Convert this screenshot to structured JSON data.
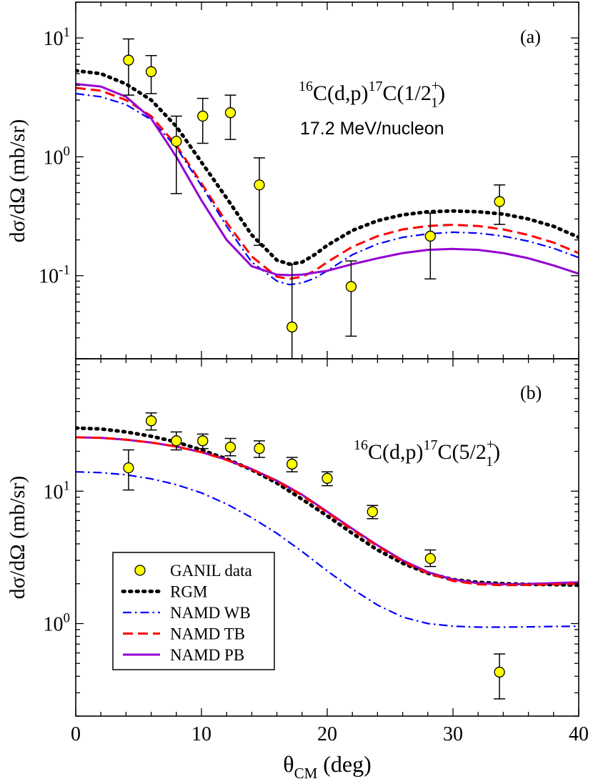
{
  "chart_data": [
    {
      "type": "line",
      "panel_label": "(a)",
      "title_parts": {
        "a1": "16",
        "b1": "C(d,p)",
        "a2": "17",
        "b2": "C(1/2",
        "sup": "+",
        "sub": "1",
        "b3": ")"
      },
      "subtitle": "17.2 MeV/nucleon",
      "ylabel": "dσ/dΩ (mb/sr)",
      "xlim": [
        0,
        40
      ],
      "ylim": [
        0.02,
        20
      ],
      "log_y": true,
      "y_tick_labels": [
        {
          "value": 10,
          "base": "10",
          "exp": "1"
        },
        {
          "value": 1,
          "base": "10",
          "exp": "0"
        },
        {
          "value": 0.1,
          "base": "10",
          "exp": "-1"
        }
      ],
      "data_points": [
        {
          "x": 4.2,
          "y": 6.5,
          "ylo": 3.3,
          "yhi": 9.8
        },
        {
          "x": 6.0,
          "y": 5.2,
          "ylo": 3.4,
          "yhi": 7.1
        },
        {
          "x": 8.0,
          "y": 1.35,
          "ylo": 0.49,
          "yhi": 2.2
        },
        {
          "x": 10.1,
          "y": 2.2,
          "ylo": 1.3,
          "yhi": 3.1
        },
        {
          "x": 12.3,
          "y": 2.35,
          "ylo": 1.4,
          "yhi": 3.3
        },
        {
          "x": 14.6,
          "y": 0.58,
          "ylo": 0.18,
          "yhi": 0.98
        },
        {
          "x": 17.2,
          "y": 0.037,
          "ylo": 0.02,
          "yhi": 0.125
        },
        {
          "x": 21.9,
          "y": 0.081,
          "ylo": 0.031,
          "yhi": 0.133
        },
        {
          "x": 28.2,
          "y": 0.215,
          "ylo": 0.094,
          "yhi": 0.335
        },
        {
          "x": 33.7,
          "y": 0.42,
          "ylo": 0.27,
          "yhi": 0.58
        }
      ],
      "series": [
        {
          "key": "rgm",
          "x": [
            0,
            2,
            4,
            6,
            8,
            10,
            12,
            14,
            16,
            17,
            18,
            19,
            20,
            22,
            24,
            26,
            28,
            30,
            32,
            34,
            36,
            38,
            40
          ],
          "y": [
            5.3,
            5.0,
            4.1,
            3.0,
            1.8,
            0.9,
            0.45,
            0.22,
            0.135,
            0.125,
            0.13,
            0.15,
            0.18,
            0.24,
            0.29,
            0.325,
            0.345,
            0.35,
            0.345,
            0.33,
            0.3,
            0.26,
            0.21
          ]
        },
        {
          "key": "tb",
          "x": [
            0,
            2,
            4,
            6,
            8,
            10,
            12,
            14,
            16,
            17,
            18,
            19,
            20,
            22,
            24,
            26,
            28,
            30,
            32,
            34,
            36,
            38,
            40
          ],
          "y": [
            3.8,
            3.6,
            3.0,
            2.2,
            1.25,
            0.6,
            0.28,
            0.145,
            0.098,
            0.094,
            0.098,
            0.11,
            0.13,
            0.175,
            0.215,
            0.245,
            0.262,
            0.268,
            0.262,
            0.245,
            0.22,
            0.19,
            0.155
          ]
        },
        {
          "key": "wb",
          "x": [
            0,
            2,
            4,
            6,
            8,
            10,
            12,
            14,
            16,
            17,
            18,
            19,
            20,
            22,
            24,
            26,
            28,
            30,
            32,
            34,
            36,
            38,
            40
          ],
          "y": [
            3.4,
            3.2,
            2.75,
            2.05,
            1.2,
            0.57,
            0.26,
            0.13,
            0.09,
            0.084,
            0.087,
            0.095,
            0.11,
            0.15,
            0.185,
            0.21,
            0.225,
            0.232,
            0.228,
            0.215,
            0.195,
            0.17,
            0.142
          ]
        },
        {
          "key": "pb",
          "x": [
            0,
            2,
            4,
            6,
            8,
            10,
            12,
            14,
            16,
            17,
            18,
            19,
            20,
            22,
            24,
            26,
            28,
            30,
            32,
            34,
            36,
            38,
            40
          ],
          "y": [
            4.1,
            3.9,
            3.2,
            2.1,
            1.0,
            0.43,
            0.2,
            0.12,
            0.102,
            0.101,
            0.102,
            0.106,
            0.11,
            0.125,
            0.14,
            0.155,
            0.165,
            0.168,
            0.165,
            0.155,
            0.14,
            0.122,
            0.104
          ]
        }
      ]
    },
    {
      "type": "line",
      "panel_label": "(b)",
      "title_parts": {
        "a1": "16",
        "b1": "C(d,p)",
        "a2": "17",
        "b2": "C(5/2",
        "sup": "+",
        "sub": "1",
        "b3": ")"
      },
      "xlabel_base": "θ",
      "xlabel_sub": "CM",
      "xlabel_rest": " (deg)",
      "ylabel": "dσ/dΩ (mb/sr)",
      "xlim": [
        0,
        40
      ],
      "ylim": [
        0.2,
        100
      ],
      "log_y": true,
      "x_ticks": [
        0,
        10,
        20,
        30,
        40
      ],
      "y_tick_labels": [
        {
          "value": 10,
          "base": "10",
          "exp": "1"
        },
        {
          "value": 1,
          "base": "10",
          "exp": "0"
        }
      ],
      "data_points": [
        {
          "x": 4.2,
          "y": 15,
          "ylo": 10.2,
          "yhi": 20.5
        },
        {
          "x": 6.0,
          "y": 34,
          "ylo": 29,
          "yhi": 39
        },
        {
          "x": 8.0,
          "y": 24,
          "ylo": 20.5,
          "yhi": 28
        },
        {
          "x": 10.1,
          "y": 24,
          "ylo": 21,
          "yhi": 27
        },
        {
          "x": 12.3,
          "y": 21.5,
          "ylo": 18.5,
          "yhi": 25
        },
        {
          "x": 14.6,
          "y": 21,
          "ylo": 18,
          "yhi": 24
        },
        {
          "x": 17.2,
          "y": 16,
          "ylo": 14,
          "yhi": 18
        },
        {
          "x": 20.0,
          "y": 12.5,
          "ylo": 11,
          "yhi": 14
        },
        {
          "x": 23.6,
          "y": 7.0,
          "ylo": 6.2,
          "yhi": 7.8
        },
        {
          "x": 28.2,
          "y": 3.1,
          "ylo": 2.7,
          "yhi": 3.6
        },
        {
          "x": 33.7,
          "y": 0.43,
          "ylo": 0.27,
          "yhi": 0.59
        }
      ],
      "series": [
        {
          "key": "rgm",
          "x": [
            0,
            2,
            4,
            6,
            8,
            10,
            12,
            14,
            16,
            18,
            20,
            22,
            24,
            26,
            28,
            30,
            32,
            34,
            36,
            38,
            40
          ],
          "y": [
            30,
            29.5,
            28,
            26,
            23.5,
            20.5,
            17.5,
            14.5,
            11.5,
            8.7,
            6.5,
            4.8,
            3.6,
            2.85,
            2.4,
            2.15,
            2.05,
            2.0,
            1.98,
            1.97,
            1.95
          ]
        },
        {
          "key": "pb",
          "x": [
            0,
            2,
            4,
            6,
            8,
            10,
            12,
            14,
            16,
            18,
            20,
            22,
            24,
            26,
            28,
            30,
            32,
            34,
            36,
            38,
            40
          ],
          "y": [
            25.5,
            25.3,
            24.5,
            23.3,
            21.7,
            19.7,
            17.3,
            14.7,
            12.0,
            9.4,
            7.0,
            5.2,
            3.9,
            3.0,
            2.45,
            2.15,
            2.02,
            1.98,
            1.99,
            2.02,
            2.05
          ]
        },
        {
          "key": "tb",
          "x": [
            0,
            2,
            4,
            6,
            8,
            10,
            12,
            14,
            16,
            18,
            20,
            22,
            24,
            26,
            28,
            30,
            32,
            34,
            36,
            38,
            40
          ],
          "y": [
            25.5,
            25.3,
            24.5,
            23.3,
            21.7,
            19.7,
            17.2,
            14.6,
            11.9,
            9.3,
            6.9,
            5.1,
            3.85,
            2.95,
            2.4,
            2.1,
            1.98,
            1.95,
            1.96,
            1.98,
            2.0
          ]
        },
        {
          "key": "wb",
          "x": [
            0,
            2,
            4,
            6,
            8,
            10,
            12,
            14,
            16,
            18,
            20,
            22,
            24,
            26,
            28,
            30,
            32,
            34,
            36,
            38,
            40
          ],
          "y": [
            14,
            13.8,
            13.3,
            12.4,
            11.2,
            9.7,
            8.0,
            6.3,
            4.8,
            3.5,
            2.5,
            1.82,
            1.38,
            1.12,
            1.0,
            0.955,
            0.94,
            0.94,
            0.945,
            0.95,
            0.955
          ]
        }
      ]
    }
  ],
  "legend": {
    "placement": "lower-left of panel (b)",
    "entries": [
      {
        "key": "data",
        "label": "GANIL data"
      },
      {
        "key": "rgm",
        "label": "RGM"
      },
      {
        "key": "wb",
        "label": "NAMD WB"
      },
      {
        "key": "tb",
        "label": "NAMD TB"
      },
      {
        "key": "pb",
        "label": "NAMD PB"
      }
    ]
  },
  "colors": {
    "rgm": "#000000",
    "wb": "#0000ff",
    "tb": "#ff0000",
    "pb": "#9400d3",
    "data_fill": "#ffff00",
    "data_edge": "#000000"
  }
}
